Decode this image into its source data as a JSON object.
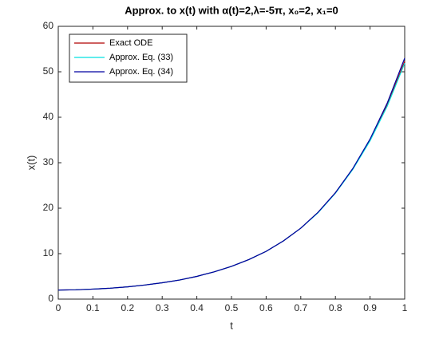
{
  "chart_data": {
    "type": "line",
    "title": "Approx. to x(t) with α(t)=2,λ=-5π, x₀=2, x₁=0",
    "xlabel": "t",
    "ylabel": "x(t)",
    "x": [
      0,
      0.05,
      0.1,
      0.15,
      0.2,
      0.25,
      0.3,
      0.35,
      0.4,
      0.45,
      0.5,
      0.55,
      0.6,
      0.65,
      0.7,
      0.75,
      0.8,
      0.85,
      0.9,
      0.95,
      1
    ],
    "series": [
      {
        "name": "Exact ODE",
        "color": "#b00000",
        "values": [
          2,
          2.05,
          2.2,
          2.4,
          2.7,
          3.1,
          3.6,
          4.2,
          5.0,
          6.0,
          7.2,
          8.7,
          10.5,
          12.8,
          15.6,
          19.1,
          23.4,
          28.6,
          35.0,
          42.8,
          52.3
        ]
      },
      {
        "name": "Approx. Eq. (33)",
        "color": "#00e0e0",
        "values": [
          2,
          2.05,
          2.2,
          2.4,
          2.7,
          3.1,
          3.6,
          4.2,
          5.0,
          6.0,
          7.2,
          8.7,
          10.5,
          12.8,
          15.6,
          19.0,
          23.3,
          28.5,
          34.8,
          42.5,
          51.9
        ]
      },
      {
        "name": "Approx. Eq. (34)",
        "color": "#0000a0",
        "values": [
          2,
          2.05,
          2.2,
          2.4,
          2.7,
          3.1,
          3.6,
          4.2,
          5.0,
          6.0,
          7.2,
          8.7,
          10.5,
          12.8,
          15.6,
          19.1,
          23.4,
          28.7,
          35.2,
          43.2,
          53.0
        ]
      }
    ],
    "xlim": [
      0,
      1
    ],
    "xticks": [
      0,
      0.1,
      0.2,
      0.3,
      0.4,
      0.5,
      0.6,
      0.7,
      0.8,
      0.9,
      1
    ],
    "ylim": [
      0,
      60
    ],
    "yticks": [
      0,
      10,
      20,
      30,
      40,
      50,
      60
    ],
    "grid": false,
    "legend": "upper left"
  }
}
